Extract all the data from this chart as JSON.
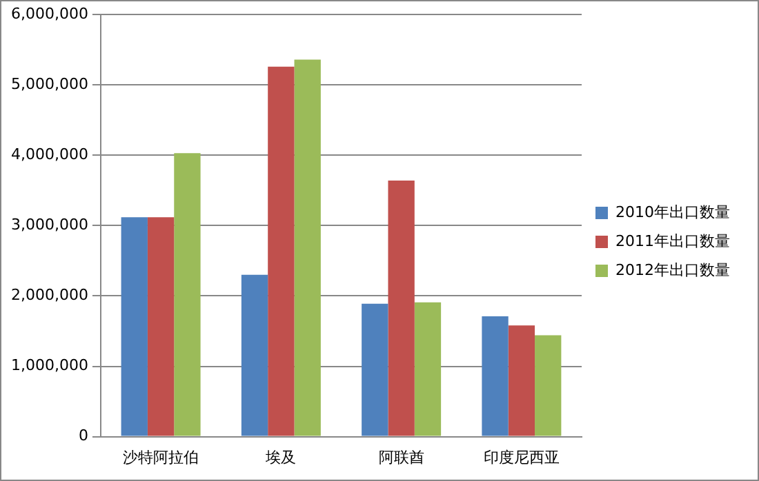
{
  "chart_data": {
    "type": "bar",
    "categories": [
      "沙特阿拉伯",
      "埃及",
      "阿联酋",
      "印度尼西亚"
    ],
    "series": [
      {
        "name": "2010年出口数量",
        "color": "#4f81bd",
        "values": [
          3120000,
          2300000,
          1890000,
          1710000
        ]
      },
      {
        "name": "2011年出口数量",
        "color": "#c0504d",
        "values": [
          3120000,
          5260000,
          3640000,
          1580000
        ]
      },
      {
        "name": "2012年出口数量",
        "color": "#9bbb59",
        "values": [
          4030000,
          5360000,
          1910000,
          1440000
        ]
      }
    ],
    "ylim": [
      0,
      6000000
    ],
    "yticks": [
      0,
      {
        "value": 1000000,
        "label": "1,000,000"
      },
      {
        "value": 2000000,
        "label": "2,000,000"
      },
      {
        "value": 3000000,
        "label": "3,000,000"
      },
      {
        "value": 4000000,
        "label": "4,000,000"
      },
      {
        "value": 5000000,
        "label": "5,000,000"
      },
      {
        "value": 6000000,
        "label": "6,000,000"
      }
    ],
    "grid": "y",
    "legend": "right"
  }
}
